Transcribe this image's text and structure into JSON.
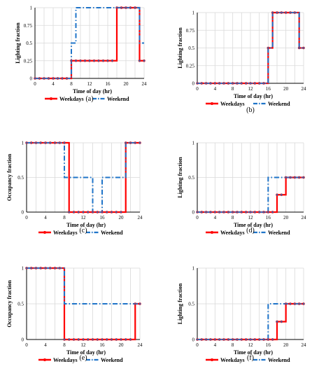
{
  "colors": {
    "weekdays": "#ff0000",
    "weekend": "#1f74c9",
    "grid": "#d9d9d9",
    "marker": "#3a5fa8"
  },
  "chart_data": [
    {
      "type": "line",
      "caption": "(a)",
      "xlabel": "Time of day (hr)",
      "ylabel": "Lighting fraction",
      "xlim": [
        0,
        24
      ],
      "ylim": [
        0,
        1
      ],
      "xticks": [
        "0",
        "4",
        "8",
        "12",
        "16",
        "20",
        "24"
      ],
      "yticks": [
        "0",
        "0.25",
        "0.5",
        "0.75",
        "1"
      ],
      "grid": true,
      "legend": "bottom",
      "series": [
        {
          "name": "Weekdays",
          "steps": [
            0,
            0,
            0,
            0,
            0,
            0,
            0,
            0,
            0.25,
            0.25,
            0.25,
            0.25,
            0.25,
            0.25,
            0.25,
            0.25,
            0.25,
            0.25,
            1,
            1,
            1,
            1,
            1,
            0.25
          ]
        },
        {
          "name": "Weekend",
          "steps": [
            0,
            0,
            0,
            0,
            0,
            0,
            0,
            0,
            0.5,
            1,
            1,
            1,
            1,
            1,
            1,
            1,
            1,
            1,
            1,
            1,
            1,
            1,
            1,
            0.5
          ]
        }
      ]
    },
    {
      "type": "line",
      "caption": "(b)",
      "xlabel": "Time of day (hr)",
      "ylabel": "Lighting fraction",
      "xlim": [
        0,
        24
      ],
      "ylim": [
        0,
        1
      ],
      "xticks": [
        "0",
        "4",
        "8",
        "12",
        "16",
        "20",
        "24"
      ],
      "yticks": [
        "0",
        "0.25",
        "0.5",
        "0.75",
        "1"
      ],
      "grid": true,
      "legend": "bottom",
      "series": [
        {
          "name": "Weekdays",
          "steps": [
            0,
            0,
            0,
            0,
            0,
            0,
            0,
            0,
            0,
            0,
            0,
            0,
            0,
            0,
            0,
            0,
            0.5,
            1,
            1,
            1,
            1,
            1,
            1,
            0.5
          ]
        },
        {
          "name": "Weekend",
          "steps": [
            0,
            0,
            0,
            0,
            0,
            0,
            0,
            0,
            0,
            0,
            0,
            0,
            0,
            0,
            0,
            0,
            0.5,
            1,
            1,
            1,
            1,
            1,
            1,
            0.5
          ]
        }
      ]
    },
    {
      "type": "line",
      "caption": "(c)",
      "xlabel": "Time of day (hr)",
      "ylabel": "Occupancy fraction",
      "xlim": [
        0,
        24
      ],
      "ylim": [
        0,
        1
      ],
      "xticks": [
        "0",
        "4",
        "8",
        "12",
        "16",
        "20",
        "24"
      ],
      "yticks": [
        "0",
        "0.5",
        "1"
      ],
      "grid": true,
      "legend": "bottom",
      "series": [
        {
          "name": "Weekdays",
          "steps": [
            1,
            1,
            1,
            1,
            1,
            1,
            1,
            1,
            1,
            0,
            0,
            0,
            0,
            0,
            0,
            0,
            0,
            0,
            0,
            0,
            0,
            1,
            1,
            1
          ]
        },
        {
          "name": "Weekend",
          "steps": [
            1,
            1,
            1,
            1,
            1,
            1,
            1,
            1,
            0.5,
            0.5,
            0.5,
            0.5,
            0.5,
            0.5,
            0,
            0,
            0.5,
            0.5,
            0.5,
            0.5,
            0.5,
            1,
            1,
            1
          ]
        }
      ]
    },
    {
      "type": "line",
      "caption": "(d)",
      "xlabel": "Time of day (hr)",
      "ylabel": "Lighting fraction",
      "xlim": [
        0,
        24
      ],
      "ylim": [
        0,
        1
      ],
      "xticks": [
        "0",
        "4",
        "8",
        "12",
        "16",
        "20",
        "24"
      ],
      "yticks": [
        "0",
        "0.5",
        "1"
      ],
      "grid": true,
      "legend": "bottom",
      "series": [
        {
          "name": "Weekdays",
          "steps": [
            0,
            0,
            0,
            0,
            0,
            0,
            0,
            0,
            0,
            0,
            0,
            0,
            0,
            0,
            0,
            0,
            0,
            0,
            0.25,
            0.25,
            0.5,
            0.5,
            0.5,
            0.5
          ]
        },
        {
          "name": "Weekend",
          "steps": [
            0,
            0,
            0,
            0,
            0,
            0,
            0,
            0,
            0,
            0,
            0,
            0,
            0,
            0,
            0,
            0,
            0.5,
            0.5,
            0.5,
            0.5,
            0.5,
            0.5,
            0.5,
            0.5
          ]
        }
      ]
    },
    {
      "type": "line",
      "caption": "(e)",
      "xlabel": "Time of day (hr)",
      "ylabel": "Occupancy fraction",
      "xlim": [
        0,
        24
      ],
      "ylim": [
        0,
        1
      ],
      "xticks": [
        "0",
        "4",
        "8",
        "12",
        "16",
        "20",
        "24"
      ],
      "yticks": [
        "0",
        "0.5",
        "1"
      ],
      "grid": true,
      "legend": "bottom",
      "series": [
        {
          "name": "Weekdays",
          "steps": [
            1,
            1,
            1,
            1,
            1,
            1,
            1,
            1,
            0,
            0,
            0,
            0,
            0,
            0,
            0,
            0,
            0,
            0,
            0,
            0,
            0,
            0,
            0,
            0.5
          ]
        },
        {
          "name": "Weekend",
          "steps": [
            1,
            1,
            1,
            1,
            1,
            1,
            1,
            1,
            0.5,
            0.5,
            0.5,
            0.5,
            0.5,
            0.5,
            0.5,
            0.5,
            0.5,
            0.5,
            0.5,
            0.5,
            0.5,
            0.5,
            0.5,
            0.5
          ]
        }
      ]
    },
    {
      "type": "line",
      "caption": "(f)",
      "xlabel": "Time of day (hr)",
      "ylabel": "Lighting fraction",
      "xlim": [
        0,
        24
      ],
      "ylim": [
        0,
        1
      ],
      "xticks": [
        "0",
        "4",
        "8",
        "12",
        "16",
        "20",
        "24"
      ],
      "yticks": [
        "0",
        "0.5",
        "1"
      ],
      "grid": true,
      "legend": "bottom",
      "series": [
        {
          "name": "Weekdays",
          "steps": [
            0,
            0,
            0,
            0,
            0,
            0,
            0,
            0,
            0,
            0,
            0,
            0,
            0,
            0,
            0,
            0,
            0,
            0,
            0.25,
            0.25,
            0.5,
            0.5,
            0.5,
            0.5
          ]
        },
        {
          "name": "Weekend",
          "steps": [
            0,
            0,
            0,
            0,
            0,
            0,
            0,
            0,
            0,
            0,
            0,
            0,
            0,
            0,
            0,
            0,
            0.5,
            0.5,
            0.5,
            0.5,
            0.5,
            0.5,
            0.5,
            0.5
          ]
        }
      ]
    }
  ]
}
